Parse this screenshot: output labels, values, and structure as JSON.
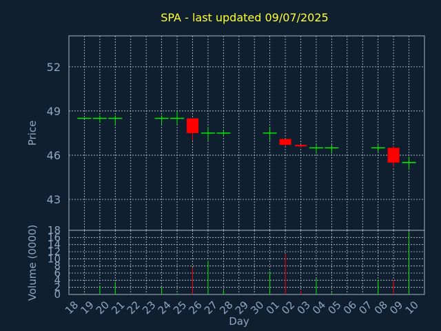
{
  "chart_data": {
    "type": "candlestick",
    "title": "SPA - last updated 09/07/2025",
    "xlabel": "Day",
    "ylabel_price": "Price",
    "ylabel_volume": "Volume (0000)",
    "x_ticks": [
      "18",
      "19",
      "20",
      "21",
      "22",
      "23",
      "24",
      "25",
      "26",
      "27",
      "28",
      "29",
      "30",
      "01",
      "02",
      "03",
      "04",
      "05",
      "06",
      "07",
      "08",
      "09",
      "10"
    ],
    "price_ylim": [
      40.9,
      54.1
    ],
    "price_ticks": [
      "43",
      "46",
      "49",
      "52"
    ],
    "volume_ylim": [
      0,
      18
    ],
    "volume_ticks": [
      "0",
      "2",
      "4",
      "6",
      "8",
      "10",
      "12",
      "14",
      "16",
      "18"
    ],
    "candles": [
      {
        "day": "18",
        "open": 48.5,
        "high": 48.5,
        "low": 48.5,
        "close": 48.5,
        "volume": 0.3
      },
      {
        "day": "19",
        "open": 48.5,
        "high": 48.7,
        "low": 48.2,
        "close": 48.5,
        "volume": 2.5
      },
      {
        "day": "20",
        "open": 48.5,
        "high": 48.7,
        "low": 48.0,
        "close": 48.5,
        "volume": 3.5
      },
      {
        "day": "23",
        "open": 48.5,
        "high": 48.7,
        "low": 48.1,
        "close": 48.5,
        "volume": 2.0
      },
      {
        "day": "24",
        "open": 48.5,
        "high": 49.0,
        "low": 48.1,
        "close": 48.5,
        "volume": 0.3
      },
      {
        "day": "25",
        "open": 48.5,
        "high": 48.5,
        "low": 47.0,
        "close": 47.5,
        "volume": 7.5
      },
      {
        "day": "26",
        "open": 47.5,
        "high": 47.9,
        "low": 47.0,
        "close": 47.5,
        "volume": 9.5
      },
      {
        "day": "27",
        "open": 47.5,
        "high": 47.7,
        "low": 47.3,
        "close": 47.5,
        "volume": 1.3
      },
      {
        "day": "30",
        "open": 47.5,
        "high": 47.9,
        "low": 47.0,
        "close": 47.5,
        "volume": 6.5
      },
      {
        "day": "01",
        "open": 47.1,
        "high": 47.1,
        "low": 46.6,
        "close": 46.7,
        "volume": 11.5
      },
      {
        "day": "02",
        "open": 46.7,
        "high": 46.7,
        "low": 46.5,
        "close": 46.6,
        "volume": 1.0
      },
      {
        "day": "03",
        "open": 46.5,
        "high": 46.7,
        "low": 46.1,
        "close": 46.5,
        "volume": 4.5
      },
      {
        "day": "04",
        "open": 46.5,
        "high": 46.7,
        "low": 46.1,
        "close": 46.5,
        "volume": 0.5
      },
      {
        "day": "07",
        "open": 46.5,
        "high": 46.7,
        "low": 46.2,
        "close": 46.5,
        "volume": 4.0
      },
      {
        "day": "08",
        "open": 46.5,
        "high": 46.6,
        "low": 45.2,
        "close": 45.5,
        "volume": 4.0
      },
      {
        "day": "09",
        "open": 45.5,
        "high": 45.9,
        "low": 45.0,
        "close": 45.5,
        "volume": 17.5
      }
    ],
    "colors": {
      "up": "#00ee00",
      "down": "#ff0000",
      "background": "#0f1f30",
      "title": "#ffff33",
      "axis_text": "#8ea7c2",
      "grid": "#c8d0d8"
    },
    "grid": true
  }
}
